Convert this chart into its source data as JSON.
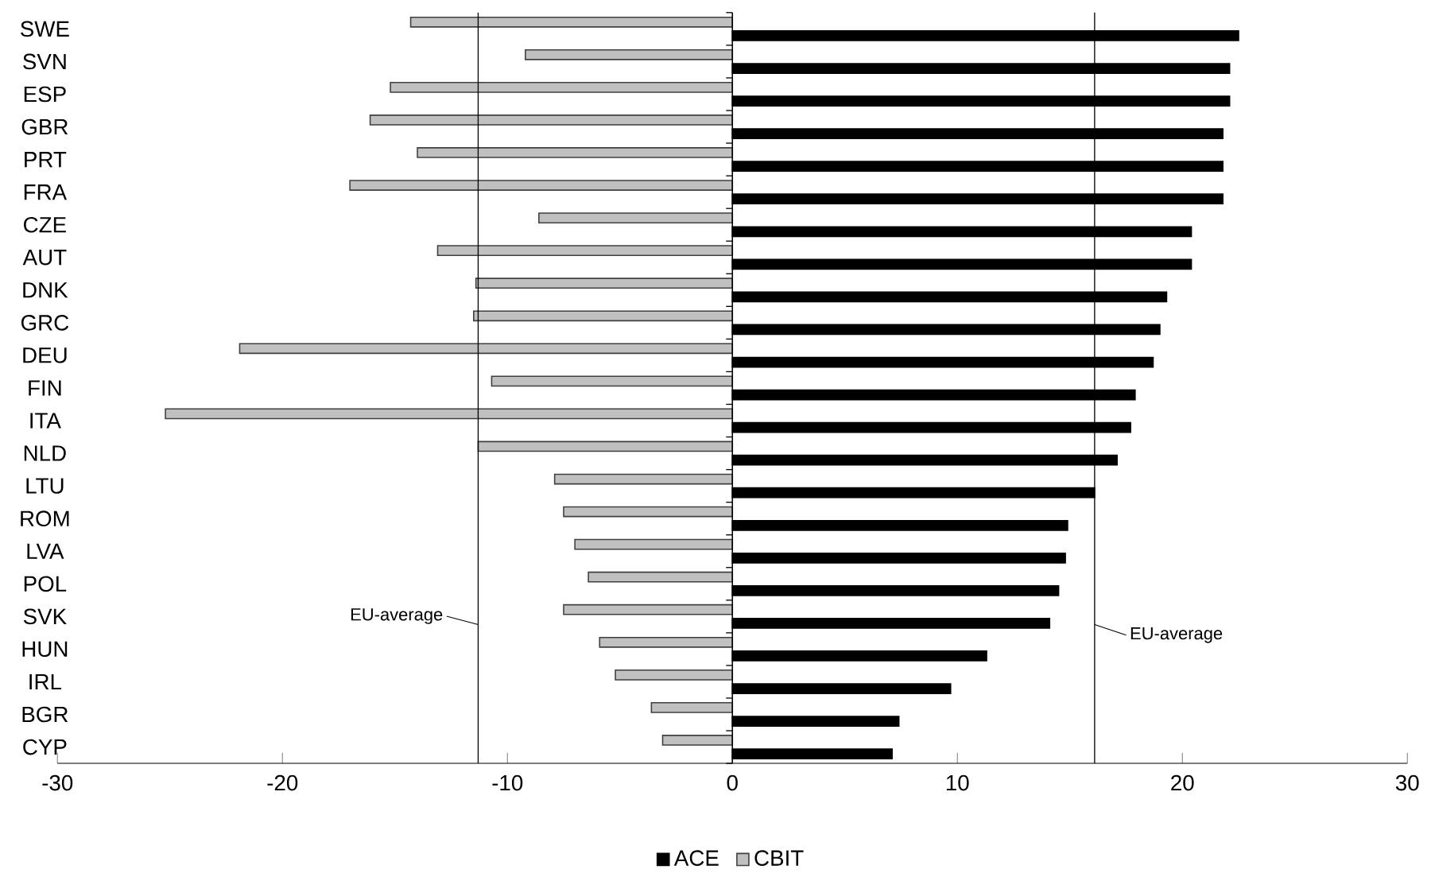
{
  "chart_data": {
    "type": "bar",
    "orientation": "horizontal",
    "categories": [
      "SWE",
      "SVN",
      "ESP",
      "GBR",
      "PRT",
      "FRA",
      "CZE",
      "AUT",
      "DNK",
      "GRC",
      "DEU",
      "FIN",
      "ITA",
      "NLD",
      "LTU",
      "ROM",
      "LVA",
      "POL",
      "SVK",
      "HUN",
      "IRL",
      "BGR",
      "CYP"
    ],
    "series": [
      {
        "name": "ACE",
        "color": "#000000",
        "values": [
          22.5,
          22.1,
          22.1,
          21.8,
          21.8,
          21.8,
          20.4,
          20.4,
          19.3,
          19.0,
          18.7,
          17.9,
          17.7,
          17.1,
          16.1,
          14.9,
          14.8,
          14.5,
          14.1,
          11.3,
          9.7,
          7.4,
          7.1
        ]
      },
      {
        "name": "CBIT",
        "color": "#c0c0c0",
        "values": [
          -14.3,
          -9.2,
          -15.2,
          -16.1,
          -14.0,
          -17.0,
          -8.6,
          -13.1,
          -11.4,
          -11.5,
          -21.9,
          -10.7,
          -25.2,
          -11.3,
          -7.9,
          -7.5,
          -7.0,
          -6.4,
          -7.5,
          -5.9,
          -5.2,
          -3.6,
          -3.1
        ]
      }
    ],
    "xlim": [
      -30,
      30
    ],
    "xticks": [
      -30,
      -20,
      -10,
      0,
      10,
      20,
      30
    ],
    "ref_lines": [
      {
        "axis": "x",
        "value": -11.3,
        "label": "EU-average",
        "color": "#000000"
      },
      {
        "axis": "x",
        "value": 16.1,
        "label": "EU-average",
        "color": "#000000"
      }
    ],
    "legend": "bottom"
  }
}
